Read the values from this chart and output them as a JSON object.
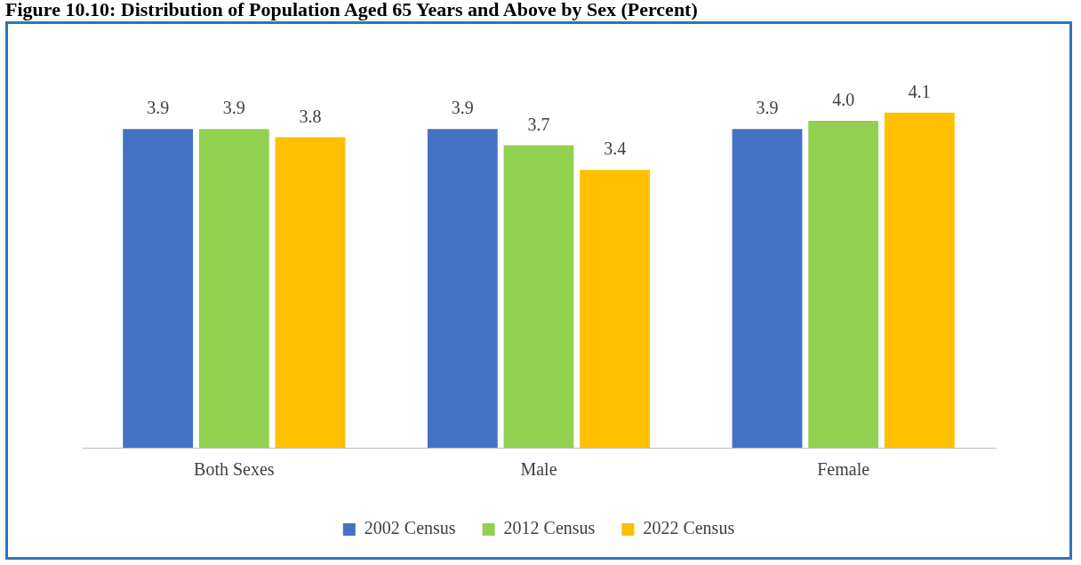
{
  "chart_data": {
    "type": "bar",
    "title": "Figure 10.10: Distribution of Population Aged 65 Years and Above by Sex (Percent)",
    "categories": [
      "Both Sexes",
      "Male",
      "Female"
    ],
    "series": [
      {
        "name": "2002 Census",
        "color": "#4472c4",
        "values": [
          3.9,
          3.9,
          3.9
        ],
        "value_labels": [
          "3.9",
          "3.9",
          "3.9"
        ]
      },
      {
        "name": "2012 Census",
        "color": "#92d050",
        "values": [
          3.9,
          3.7,
          4.0
        ],
        "value_labels": [
          "3.9",
          "3.7",
          "4.0"
        ]
      },
      {
        "name": "2022 Census",
        "color": "#ffc000",
        "values": [
          3.8,
          3.4,
          4.1
        ],
        "value_labels": [
          "3.8",
          "3.4",
          "4.1"
        ]
      }
    ],
    "legend": "bottom"
  }
}
